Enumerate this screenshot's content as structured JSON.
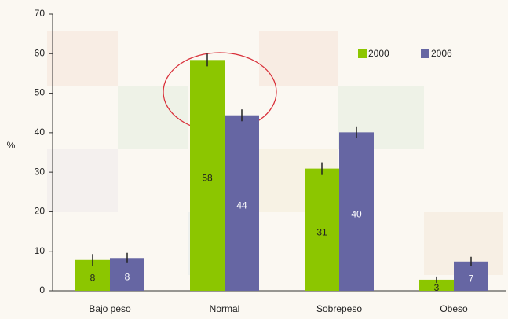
{
  "chart_data": {
    "type": "bar",
    "ylabel": "%",
    "categories": [
      "Bajo peso",
      "Normal",
      "Sobrepeso",
      "Obeso"
    ],
    "series": [
      {
        "name": "2000",
        "color": "#8cc600",
        "values": [
          7.8,
          58.4,
          30.9,
          2.8
        ],
        "errors": [
          1.5,
          1.6,
          1.6,
          0.8
        ],
        "value_labels": [
          "8",
          "58",
          "31",
          "3"
        ]
      },
      {
        "name": "2006",
        "color": "#6666a3",
        "values": [
          8.3,
          44.4,
          40.1,
          7.4
        ],
        "errors": [
          1.3,
          1.5,
          1.5,
          1.2
        ],
        "value_labels": [
          "8",
          "44",
          "40",
          "7"
        ]
      }
    ],
    "ylim": [
      0,
      70
    ],
    "yticks": [
      0,
      10,
      20,
      30,
      40,
      50,
      60,
      70
    ],
    "legend": "top-right"
  }
}
